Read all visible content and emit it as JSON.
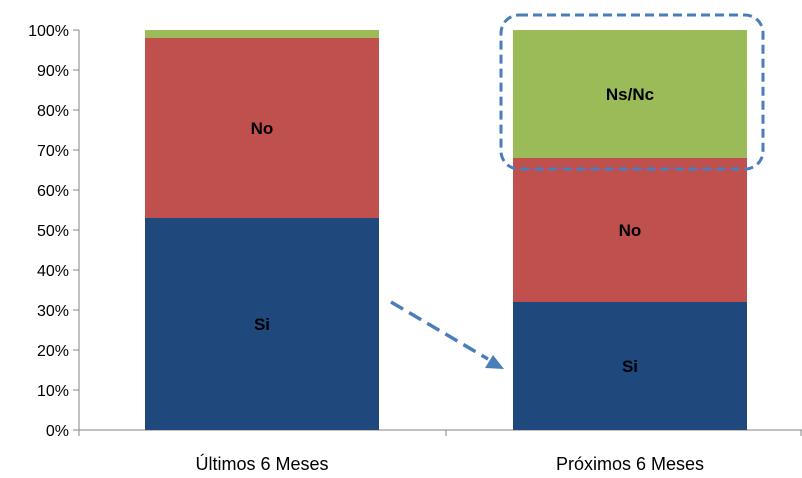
{
  "chart_data": {
    "type": "bar",
    "stacked": true,
    "categories": [
      "Últimos 6 Meses",
      "Próximos 6 Meses"
    ],
    "series": [
      {
        "name": "Si",
        "color": "#1F497D",
        "values": [
          53,
          32
        ]
      },
      {
        "name": "No",
        "color": "#C0504D",
        "values": [
          45,
          36
        ]
      },
      {
        "name": "Ns/Nc",
        "color": "#9BBB59",
        "values": [
          2,
          32
        ]
      }
    ],
    "segment_labels": [
      [
        "Si",
        "No",
        ""
      ],
      [
        "Si",
        "No",
        "Ns/Nc"
      ]
    ],
    "ylim": [
      0,
      100
    ],
    "yticks": [
      "0%",
      "10%",
      "20%",
      "30%",
      "40%",
      "50%",
      "60%",
      "70%",
      "80%",
      "90%",
      "100%"
    ],
    "grid": false,
    "legend": "none",
    "annotations": {
      "highlight_box": "Ns/Nc segment of Próximos 6 Meses",
      "arrow": "dashed arrow from Últimos 6 Meses toward Próximos 6 Meses",
      "accent_color": "#4A7EBB"
    }
  }
}
